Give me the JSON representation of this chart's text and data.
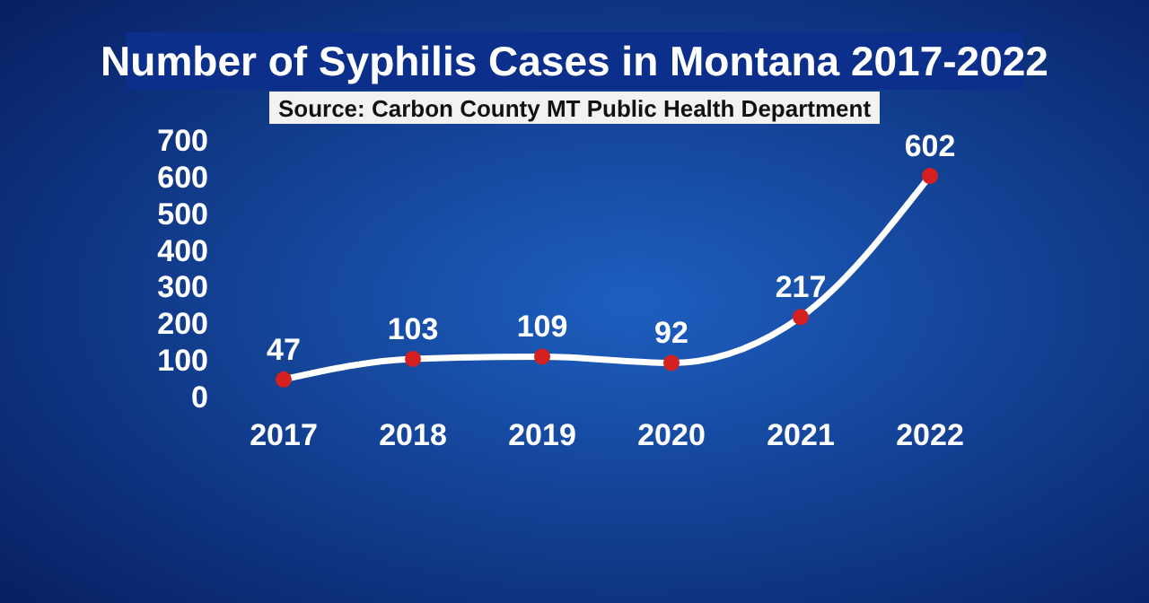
{
  "chart_data": {
    "type": "line",
    "title": "Number of Syphilis Cases in Montana 2017-2022",
    "annotations": [
      "Source: Carbon County MT Public Health Department"
    ],
    "categories": [
      "2017",
      "2018",
      "2019",
      "2020",
      "2021",
      "2022"
    ],
    "series": [
      {
        "color": "#ffffff",
        "values": [
          47,
          103,
          109,
          92,
          217,
          602
        ]
      }
    ],
    "ylim": [
      0,
      700
    ],
    "yticks": [
      0,
      100,
      200,
      300,
      400,
      500,
      600,
      700
    ],
    "grid": false,
    "marker": "circle",
    "line_style": "solid",
    "data_labels": true
  }
}
